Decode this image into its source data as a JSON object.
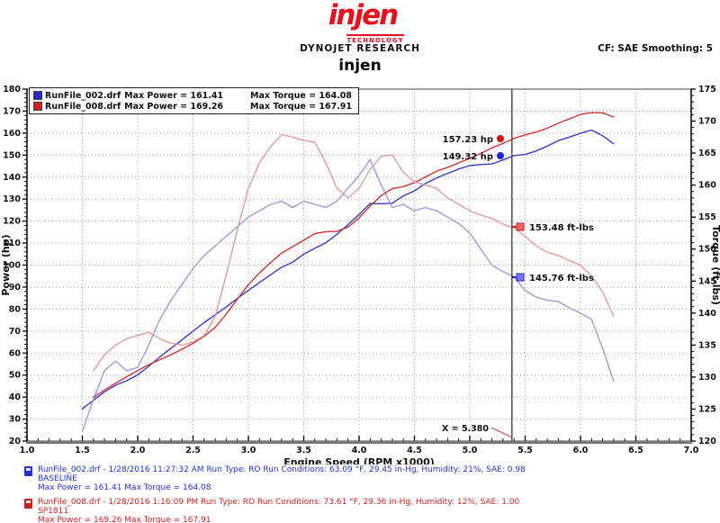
{
  "header": {
    "logo_text": "injen",
    "logo_sub": "TECHNOLOGY",
    "subtitle": "DYNOJET RESEARCH",
    "correction": "CF: SAE  Smoothing: 5",
    "title": "injen",
    "brand_red": "#e8101c"
  },
  "legend": {
    "rows": [
      {
        "file": "RunFile_002.drf",
        "max_power_label": "Max Power = 161.41",
        "max_torque_label": "Max Torque = 164.08",
        "color": "#2a2ac8"
      },
      {
        "file": "RunFile_008.drf",
        "max_power_label": "Max Power = 169.26",
        "max_torque_label": "Max Torque = 167.91",
        "color": "#cc2222"
      }
    ]
  },
  "annotations": {
    "hp_red": "157.23 hp",
    "hp_blue": "149.32 hp",
    "tq_red": "153.48 ft-lbs",
    "tq_blue": "145.76 ft-lbs",
    "cursor_label": "X = 5.380"
  },
  "chart_data": {
    "type": "line",
    "title": "injen",
    "xlabel": "Engine Speed (RPM x1000)",
    "ylabel_left": "Power (hp)",
    "ylabel_right": "Torque (ft-lbs)",
    "x_range": [
      1.0,
      7.0
    ],
    "x_major": 0.5,
    "x_minor": 0.1,
    "y_left_range": [
      20,
      180
    ],
    "y_left_major": 10,
    "y_left_minor": 2,
    "y_right_range": [
      120,
      175
    ],
    "y_right_major": 5,
    "y_right_minor": 1,
    "grid": "dotted",
    "legend_position": "top-left",
    "cursor_x": 5.38,
    "cursor_values": {
      "power_red_hp": 157.23,
      "power_blue_hp": 149.32,
      "torque_red_ftlbs": 153.48,
      "torque_blue_ftlbs": 145.76
    },
    "series": [
      {
        "name": "RunFile_002.drf Power (BASELINE)",
        "axis": "left",
        "color": "#3b3bc8",
        "x": [
          1.5,
          1.6,
          1.7,
          1.8,
          1.9,
          2.0,
          2.1,
          2.2,
          2.3,
          2.4,
          2.5,
          2.6,
          2.7,
          2.8,
          2.9,
          3.0,
          3.1,
          3.2,
          3.3,
          3.4,
          3.5,
          3.6,
          3.7,
          3.8,
          3.9,
          4.0,
          4.1,
          4.2,
          4.3,
          4.4,
          4.5,
          4.6,
          4.7,
          4.8,
          4.9,
          5.0,
          5.1,
          5.2,
          5.3,
          5.4,
          5.5,
          5.6,
          5.7,
          5.8,
          5.9,
          6.0,
          6.1,
          6.2,
          6.3
        ],
        "y": [
          34.7,
          38.5,
          42.4,
          45.4,
          47.4,
          50.1,
          54.0,
          58.2,
          62.2,
          66.0,
          70.0,
          73.8,
          77.4,
          81.0,
          84.8,
          88.5,
          92.1,
          95.6,
          99.0,
          101.3,
          105.0,
          107.6,
          110.2,
          114.0,
          118.4,
          123.0,
          128.0,
          127.9,
          128.1,
          131.5,
          133.7,
          137.1,
          139.6,
          141.7,
          143.7,
          145.2,
          145.7,
          146.0,
          147.8,
          149.8,
          150.3,
          151.9,
          154.1,
          156.6,
          158.2,
          159.9,
          161.4,
          158.8,
          155.1
        ]
      },
      {
        "name": "RunFile_002.drf Torque (BASELINE)",
        "axis": "right",
        "color": "#9b9be0",
        "x": [
          1.5,
          1.6,
          1.7,
          1.8,
          1.9,
          2.0,
          2.1,
          2.2,
          2.3,
          2.4,
          2.5,
          2.6,
          2.7,
          2.8,
          2.9,
          3.0,
          3.1,
          3.2,
          3.3,
          3.4,
          3.5,
          3.6,
          3.7,
          3.8,
          3.9,
          4.0,
          4.1,
          4.2,
          4.3,
          4.4,
          4.5,
          4.6,
          4.7,
          4.8,
          4.9,
          5.0,
          5.1,
          5.2,
          5.3,
          5.4,
          5.5,
          5.6,
          5.7,
          5.8,
          5.9,
          6.0,
          6.1,
          6.2,
          6.3
        ],
        "y": [
          121.5,
          126.5,
          131.0,
          132.5,
          131.0,
          131.5,
          135.0,
          139.0,
          142.0,
          144.5,
          147.0,
          149.0,
          150.5,
          152.0,
          153.5,
          155.0,
          156.0,
          157.0,
          157.5,
          156.5,
          157.5,
          157.0,
          156.5,
          157.5,
          159.5,
          161.5,
          164.0,
          160.0,
          156.5,
          157.0,
          156.0,
          156.5,
          156.0,
          155.0,
          154.0,
          152.5,
          150.0,
          147.5,
          146.5,
          145.7,
          143.5,
          142.5,
          142.0,
          141.8,
          140.8,
          140.0,
          139.0,
          134.5,
          129.3
        ]
      },
      {
        "name": "RunFile_008.drf Power (SP1811)",
        "axis": "left",
        "color": "#cf3434",
        "x": [
          1.6,
          1.7,
          1.8,
          1.9,
          2.0,
          2.1,
          2.2,
          2.3,
          2.4,
          2.5,
          2.6,
          2.7,
          2.8,
          2.9,
          3.0,
          3.1,
          3.2,
          3.3,
          3.4,
          3.5,
          3.6,
          3.7,
          3.8,
          3.9,
          4.0,
          4.1,
          4.2,
          4.3,
          4.4,
          4.5,
          4.6,
          4.7,
          4.8,
          4.9,
          5.0,
          5.1,
          5.2,
          5.3,
          5.4,
          5.5,
          5.6,
          5.7,
          5.8,
          5.9,
          6.0,
          6.1,
          6.2,
          6.3
        ],
        "y": [
          39.9,
          43.2,
          46.3,
          49.2,
          52.0,
          54.8,
          57.0,
          59.3,
          61.7,
          64.5,
          67.6,
          71.7,
          77.8,
          84.5,
          91.1,
          96.5,
          101.1,
          105.5,
          108.4,
          111.3,
          114.3,
          115.2,
          115.4,
          117.3,
          121.5,
          126.9,
          131.6,
          134.8,
          135.7,
          137.5,
          140.1,
          142.7,
          144.4,
          146.5,
          148.5,
          150.8,
          153.3,
          155.3,
          157.6,
          159.2,
          160.5,
          162.2,
          164.5,
          166.5,
          168.5,
          169.3,
          169.2,
          167.3
        ]
      },
      {
        "name": "RunFile_008.drf Torque (SP1811)",
        "axis": "right",
        "color": "#e79a9a",
        "x": [
          1.6,
          1.7,
          1.8,
          1.9,
          2.0,
          2.1,
          2.2,
          2.3,
          2.4,
          2.5,
          2.6,
          2.7,
          2.8,
          2.9,
          3.0,
          3.1,
          3.2,
          3.3,
          3.4,
          3.5,
          3.6,
          3.7,
          3.8,
          3.9,
          4.0,
          4.1,
          4.2,
          4.3,
          4.4,
          4.5,
          4.6,
          4.7,
          4.8,
          4.9,
          5.0,
          5.1,
          5.2,
          5.3,
          5.4,
          5.5,
          5.6,
          5.7,
          5.8,
          5.9,
          6.0,
          6.1,
          6.2,
          6.3
        ],
        "y": [
          131.0,
          133.5,
          135.0,
          136.0,
          136.5,
          137.0,
          136.0,
          135.3,
          135.0,
          135.5,
          136.5,
          139.5,
          146.0,
          153.0,
          159.5,
          163.5,
          166.0,
          167.9,
          167.5,
          167.0,
          166.7,
          163.5,
          159.5,
          158.0,
          159.5,
          162.5,
          164.5,
          164.7,
          162.0,
          160.5,
          160.0,
          159.5,
          158.0,
          157.0,
          156.0,
          155.3,
          154.8,
          153.9,
          153.3,
          152.0,
          150.5,
          149.5,
          149.0,
          148.2,
          147.5,
          145.8,
          143.3,
          139.5
        ]
      }
    ]
  },
  "footer": {
    "entries": [
      {
        "color": "#2233cc",
        "line1": "RunFile_002.drf - 1/28/2016 11:27:32 AM  Run Type: RO  Run Conditions: 63.09 °F, 29.45 in-Hg,  Humidity:  21%, SAE: 0.98",
        "line2": "BASELINE",
        "line3": "Max Power = 161.41  Max Torque = 164.08"
      },
      {
        "color": "#cc2222",
        "line1": "RunFile_008.drf - 1/28/2016 1:16:09 PM  Run Type: RO  Run Conditions: 73.61 °F, 29.36 in-Hg,  Humidity:  12%, SAE: 1.00",
        "line2": "SP1811",
        "line3": "Max Power = 169.26  Max Torque = 167.91"
      }
    ]
  }
}
